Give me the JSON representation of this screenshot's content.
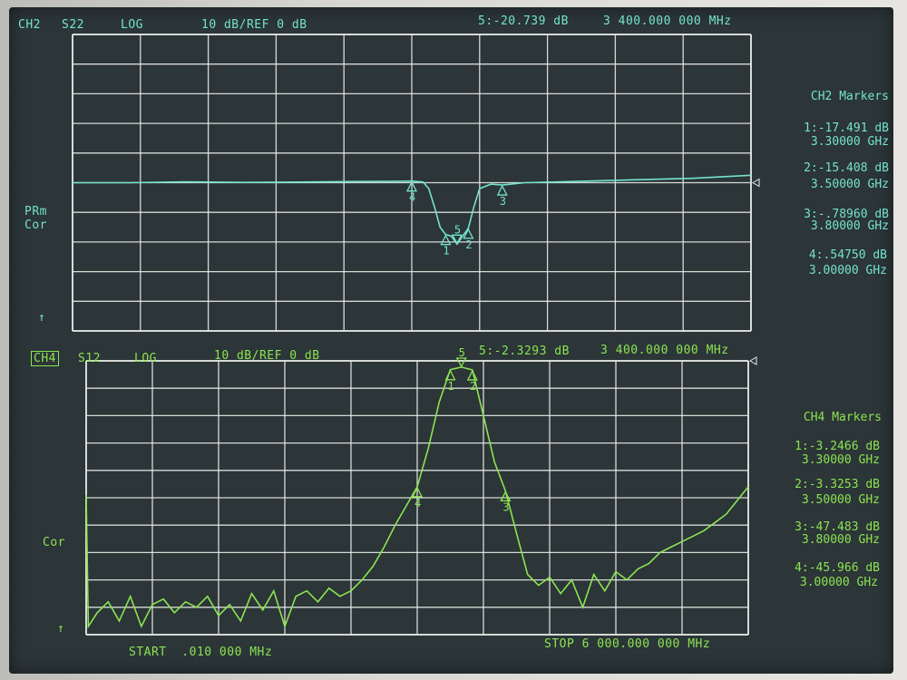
{
  "top_header": {
    "channel": "CH2",
    "param": "S22",
    "format": "LOG",
    "scale": "10 dB/REF 0 dB",
    "active_marker": "5:-20.739 dB",
    "active_freq": "3 400.000 000 MHz"
  },
  "top_side": {
    "line1": "PRm",
    "line2": "Cor",
    "arrow": "↑"
  },
  "top_markers": {
    "title": "CH2 Markers",
    "items": [
      {
        "value": "1:-17.491 dB",
        "freq": "3.30000 GHz"
      },
      {
        "value": "2:-15.408 dB",
        "freq": "3.50000 GHz"
      },
      {
        "value": "3:-.78960 dB",
        "freq": "3.80000 GHz"
      },
      {
        "value": "4:.54750 dB",
        "freq": "3.00000 GHz"
      }
    ]
  },
  "bottom_header": {
    "channel": "CH4",
    "param": "S12",
    "format": "LOG",
    "scale": "10 dB/REF 0 dB",
    "active_marker": "5:-2.3293 dB",
    "active_freq": "3 400.000 000 MHz"
  },
  "bottom_side": {
    "line1": "Cor",
    "arrow": "↑"
  },
  "bottom_markers": {
    "title": "CH4 Markers",
    "items": [
      {
        "value": "1:-3.2466 dB",
        "freq": "3.30000 GHz"
      },
      {
        "value": "2:-3.3253 dB",
        "freq": "3.50000 GHz"
      },
      {
        "value": "3:-47.483 dB",
        "freq": "3.80000 GHz"
      },
      {
        "value": "4:-45.966 dB",
        "freq": "3.00000 GHz"
      }
    ]
  },
  "footer": {
    "start": "START  .010 000 MHz",
    "stop": "STOP 6 000.000 000 MHz"
  },
  "colors": {
    "ch2": "#74e3cc",
    "ch4": "#8be450",
    "grid": "#e8ece8",
    "screen": "#2c3538"
  },
  "chart_data": [
    {
      "type": "line",
      "title": "CH2 S22 LOG",
      "xlabel": "",
      "ylabel": "",
      "x_unit": "GHz",
      "y_unit": "dB",
      "xlim": [
        1e-05,
        6.0
      ],
      "ylim": [
        -50,
        50
      ],
      "reference_db": 0,
      "scale_db_per_div": 10,
      "grid": true,
      "series": [
        {
          "x": [
            0.0,
            0.5,
            1.0,
            1.5,
            2.0,
            2.5,
            2.9,
            3.0,
            3.1,
            3.15,
            3.2,
            3.25,
            3.3,
            3.35,
            3.4,
            3.45,
            3.5,
            3.55,
            3.6,
            3.7,
            3.8,
            4.0,
            4.5,
            5.0,
            5.5,
            6.0
          ],
          "y": [
            0.0,
            0.0,
            0.3,
            0.1,
            0.2,
            0.4,
            0.5,
            0.55,
            0.2,
            -2,
            -8,
            -15,
            -17.5,
            -18,
            -20.7,
            -18,
            -15.4,
            -8,
            -2,
            -0.5,
            -0.8,
            0.0,
            0.5,
            1.0,
            1.5,
            2.5
          ]
        }
      ],
      "markers": [
        {
          "n": "1",
          "x": 3.3,
          "y": -17.491
        },
        {
          "n": "2",
          "x": 3.5,
          "y": -15.408
        },
        {
          "n": "3",
          "x": 3.8,
          "y": -0.7896
        },
        {
          "n": "4",
          "x": 3.0,
          "y": 0.5475
        },
        {
          "n": "5",
          "x": 3.4,
          "y": -20.739
        }
      ]
    },
    {
      "type": "line",
      "title": "CH4 S12 LOG",
      "xlabel": "",
      "ylabel": "",
      "x_unit": "GHz",
      "y_unit": "dB",
      "xlim": [
        1e-05,
        6.0
      ],
      "ylim": [
        -100,
        0
      ],
      "reference_db": 0,
      "scale_db_per_div": 10,
      "grid": true,
      "series": [
        {
          "x": [
            0.0,
            0.02,
            0.1,
            0.2,
            0.3,
            0.4,
            0.5,
            0.6,
            0.7,
            0.8,
            0.9,
            1.0,
            1.1,
            1.2,
            1.3,
            1.4,
            1.5,
            1.6,
            1.7,
            1.8,
            1.9,
            2.0,
            2.1,
            2.2,
            2.3,
            2.4,
            2.5,
            2.6,
            2.7,
            2.8,
            2.9,
            3.0,
            3.1,
            3.2,
            3.3,
            3.4,
            3.5,
            3.6,
            3.7,
            3.8,
            3.9,
            4.0,
            4.1,
            4.2,
            4.3,
            4.4,
            4.5,
            4.6,
            4.7,
            4.8,
            4.9,
            5.0,
            5.1,
            5.2,
            5.3,
            5.4,
            5.5,
            5.6,
            5.7,
            5.8,
            5.9,
            6.0
          ],
          "y": [
            -49,
            -97,
            -92,
            -88,
            -95,
            -86,
            -97,
            -89,
            -87,
            -92,
            -88,
            -90,
            -86,
            -93,
            -89,
            -95,
            -85,
            -91,
            -84,
            -97,
            -86,
            -84,
            -88,
            -83,
            -86,
            -84,
            -80,
            -75,
            -68,
            -60,
            -53,
            -46,
            -32,
            -15,
            -3.2,
            -2.3,
            -3.3,
            -20,
            -37,
            -47.5,
            -63,
            -78,
            -82,
            -79,
            -85,
            -80,
            -90,
            -78,
            -84,
            -77,
            -80,
            -76,
            -74,
            -70,
            -68,
            -66,
            -64,
            -62,
            -59,
            -56,
            -51,
            -46
          ]
        }
      ],
      "markers": [
        {
          "n": "1",
          "x": 3.3,
          "y": -3.2466
        },
        {
          "n": "2",
          "x": 3.5,
          "y": -3.3253
        },
        {
          "n": "3",
          "x": 3.8,
          "y": -47.483
        },
        {
          "n": "4",
          "x": 3.0,
          "y": -45.966
        },
        {
          "n": "5",
          "x": 3.4,
          "y": -2.3293
        }
      ]
    }
  ]
}
